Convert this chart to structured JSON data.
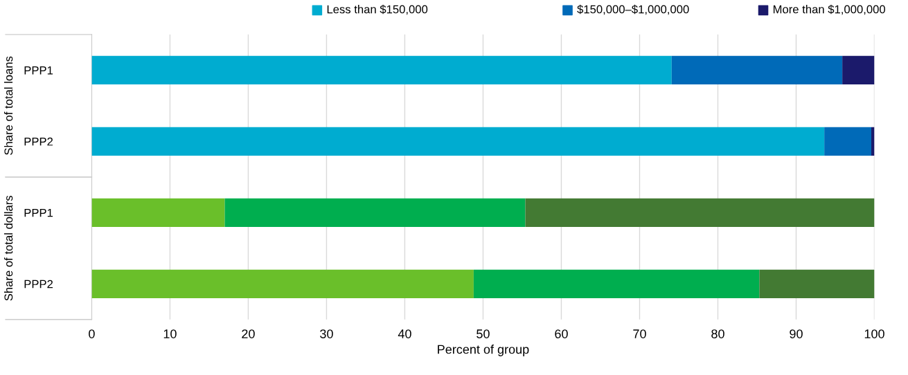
{
  "chart_data": {
    "type": "bar",
    "orientation": "horizontal",
    "stacked": true,
    "categories": [
      "PPP1",
      "PPP2",
      "PPP1",
      "PPP2"
    ],
    "series": [
      {
        "name": "Less than $150,000",
        "colors": [
          "#00acd0",
          "#00acd0",
          "#6abf2a",
          "#6abf2a"
        ],
        "values": [
          74.1,
          93.6,
          17.0,
          48.8
        ]
      },
      {
        "name": "$150,000–$1,000,000",
        "colors": [
          "#006ab8",
          "#006ab8",
          "#00ae4f",
          "#00ae4f"
        ],
        "values": [
          21.8,
          6.0,
          38.4,
          36.5
        ]
      },
      {
        "name": "More than $1,000,000",
        "colors": [
          "#1b1a6b",
          "#1b1a6b",
          "#437a33",
          "#437a33"
        ],
        "values": [
          4.1,
          0.4,
          44.6,
          14.7
        ]
      }
    ],
    "xlabel": "Percent of group",
    "xlim": [
      0,
      100
    ],
    "xticks": [
      0,
      10,
      20,
      30,
      40,
      50,
      60,
      70,
      80,
      90,
      100
    ],
    "grid": "x",
    "legend": "top right",
    "annotations": [
      "Share of total loans",
      "Share of total dollars"
    ]
  }
}
